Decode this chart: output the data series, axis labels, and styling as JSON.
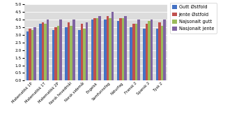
{
  "categories": [
    "Matematikk 1P",
    "Matematikk 1T",
    "Matematikk 2P",
    "Norsk hovedmål",
    "Norsk sidemål",
    "Engelsk",
    "Samfunnsfag",
    "Naturfag",
    "Fransk 2",
    "Spansk 2",
    "Tysk 2"
  ],
  "series": {
    "Gutt Østfold": [
      3.2,
      3.7,
      3.3,
      3.5,
      3.3,
      4.0,
      4.0,
      3.9,
      3.5,
      3.4,
      3.4
    ],
    "Jente Østfold": [
      3.4,
      3.8,
      3.5,
      3.8,
      3.7,
      4.1,
      4.2,
      4.1,
      3.7,
      3.7,
      3.8
    ],
    "Najsonalt gutt": [
      3.3,
      3.7,
      3.6,
      3.6,
      3.4,
      4.1,
      4.1,
      4.1,
      3.7,
      3.9,
      3.6
    ],
    "Nasjonalt jente": [
      3.5,
      4.0,
      4.0,
      4.0,
      3.8,
      4.2,
      4.5,
      4.2,
      4.0,
      4.0,
      4.0
    ]
  },
  "colors": {
    "Gutt Østfold": "#4472C4",
    "Jente Østfold": "#C0504D",
    "Najsonalt gutt": "#9BBB59",
    "Nasjonalt jente": "#8064A2"
  },
  "ylim": [
    0,
    5
  ],
  "yticks": [
    0,
    0.5,
    1.0,
    1.5,
    2.0,
    2.5,
    3.0,
    3.5,
    4.0,
    4.5,
    5.0
  ],
  "background_color": "#DCDCDC"
}
